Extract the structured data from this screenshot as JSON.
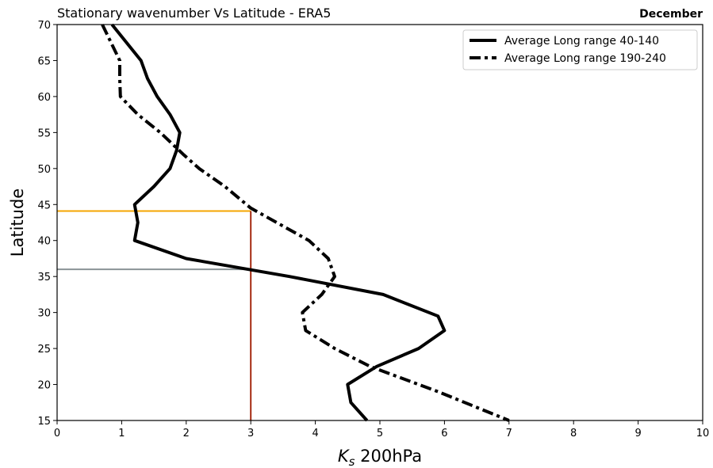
{
  "chart_data": {
    "type": "line",
    "title": "Stationary wavenumber Vs Latitude - ERA5",
    "title_right": "December",
    "xlabel": "K_s 200hPa",
    "xlabel_main": "K",
    "xlabel_sub": "s",
    "xlabel_rest": " 200hPa",
    "ylabel": "Latitude",
    "xlim": [
      0,
      10
    ],
    "ylim": [
      15,
      70
    ],
    "xticks": [
      0,
      1,
      2,
      3,
      4,
      5,
      6,
      7,
      8,
      9,
      10
    ],
    "yticks": [
      15,
      20,
      25,
      30,
      35,
      40,
      45,
      50,
      55,
      60,
      65,
      70
    ],
    "grid": false,
    "legend_position": "upper-right",
    "series": [
      {
        "name": "Average Long range 40-140",
        "style": "solid",
        "color": "#000000",
        "points": [
          [
            0.85,
            70
          ],
          [
            1.3,
            65
          ],
          [
            1.4,
            62.5
          ],
          [
            1.55,
            60
          ],
          [
            1.75,
            57.5
          ],
          [
            1.9,
            55
          ],
          [
            1.85,
            52.5
          ],
          [
            1.75,
            50
          ],
          [
            1.5,
            47.5
          ],
          [
            1.2,
            45
          ],
          [
            1.25,
            42.5
          ],
          [
            1.2,
            40
          ],
          [
            2.0,
            37.5
          ],
          [
            3.6,
            35
          ],
          [
            5.05,
            32.5
          ],
          [
            5.9,
            29.5
          ],
          [
            6.0,
            27.5
          ],
          [
            5.6,
            25
          ],
          [
            4.95,
            22.5
          ],
          [
            4.5,
            20
          ],
          [
            4.55,
            17.5
          ],
          [
            4.8,
            15
          ]
        ]
      },
      {
        "name": "Average Long range 190-240",
        "style": "dashdot",
        "color": "#000000",
        "points": [
          [
            0.7,
            70
          ],
          [
            0.97,
            65
          ],
          [
            0.97,
            62.5
          ],
          [
            0.98,
            60
          ],
          [
            1.25,
            57.5
          ],
          [
            1.6,
            55
          ],
          [
            1.95,
            52
          ],
          [
            2.2,
            50
          ],
          [
            2.6,
            47.5
          ],
          [
            3.0,
            44.5
          ],
          [
            3.5,
            42
          ],
          [
            3.9,
            40
          ],
          [
            4.2,
            37.5
          ],
          [
            4.3,
            35
          ],
          [
            4.1,
            32.5
          ],
          [
            3.8,
            30
          ],
          [
            3.85,
            27.5
          ],
          [
            4.3,
            25
          ],
          [
            4.85,
            22.5
          ],
          [
            5.9,
            19
          ],
          [
            7.0,
            15
          ]
        ]
      }
    ],
    "reference_lines": [
      {
        "kind": "horizontal",
        "y": 44.1,
        "x_end": 3.0,
        "color": "#f5a500"
      },
      {
        "kind": "horizontal",
        "y": 36.0,
        "x_end": 3.0,
        "color": "#8a9396"
      },
      {
        "kind": "vertical",
        "x": 3.0,
        "y_end": 44.1,
        "color": "#a52a11"
      }
    ]
  }
}
